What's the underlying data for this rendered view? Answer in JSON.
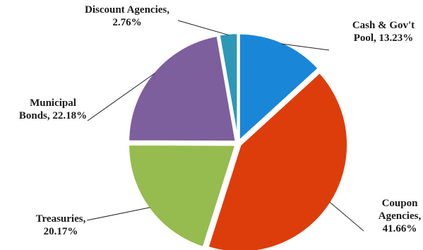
{
  "chart_data": {
    "type": "pie",
    "title": "",
    "start_angle_deg": -90,
    "direction": "clockwise",
    "legend": "none",
    "slices": [
      {
        "name": "Cash & Gov't Pool",
        "value": 13.23,
        "color": "#1a86d8",
        "label_lines": [
          "Cash & Gov't",
          "Pool, 13.23%"
        ]
      },
      {
        "name": "Coupon Agencies",
        "value": 41.66,
        "color": "#dd3d0a",
        "label_lines": [
          "Coupon",
          "Agencies,",
          "41.66%"
        ]
      },
      {
        "name": "Treasuries",
        "value": 20.17,
        "color": "#96bb4f",
        "label_lines": [
          "Treasuries,",
          "20.17%"
        ]
      },
      {
        "name": "Municipal Bonds",
        "value": 22.18,
        "color": "#7c5f9c",
        "label_lines": [
          "Municipal",
          "Bonds, 22.18%"
        ]
      },
      {
        "name": "Discount Agencies",
        "value": 2.76,
        "color": "#2d97b8",
        "label_lines": [
          "Discount Agencies,",
          "2.76%"
        ]
      }
    ]
  }
}
